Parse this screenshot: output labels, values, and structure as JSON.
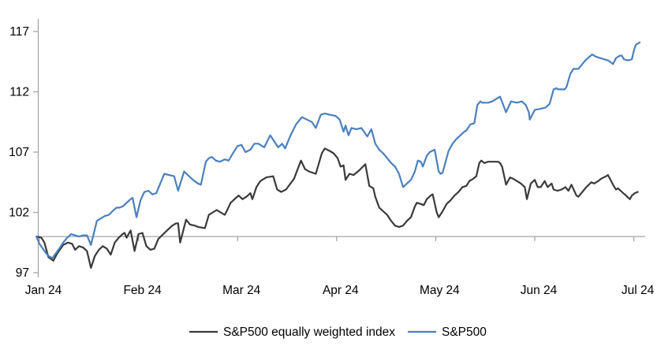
{
  "chart_data": {
    "type": "line",
    "title": "",
    "xlabel": "",
    "ylabel": "",
    "x_axis": {
      "tick_labels": [
        "Jan 24",
        "Feb 24",
        "Mar 24",
        "Apr 24",
        "May 24",
        "Jun 24",
        "Jul 24"
      ],
      "baseline_value": 100,
      "grid": false
    },
    "y_axis": {
      "tick_values": [
        97,
        102,
        107,
        112,
        117
      ],
      "range": [
        97,
        118.1
      ],
      "grid": false
    },
    "legend_position": "bottom-center",
    "axis_color": "#a6a6a6",
    "series": [
      {
        "name": "S&P500 equally weighted index",
        "color": "#3a3a3a",
        "points": [
          [
            -0.03,
            100.0
          ],
          [
            0.02,
            99.9
          ],
          [
            0.05,
            99.5
          ],
          [
            0.09,
            98.3
          ],
          [
            0.14,
            98.0
          ],
          [
            0.18,
            98.6
          ],
          [
            0.24,
            99.3
          ],
          [
            0.29,
            99.5
          ],
          [
            0.33,
            99.4
          ],
          [
            0.36,
            98.9
          ],
          [
            0.4,
            99.2
          ],
          [
            0.44,
            99.1
          ],
          [
            0.48,
            98.8
          ],
          [
            0.52,
            97.4
          ],
          [
            0.56,
            98.4
          ],
          [
            0.6,
            98.9
          ],
          [
            0.64,
            99.2
          ],
          [
            0.68,
            99.0
          ],
          [
            0.72,
            98.5
          ],
          [
            0.76,
            99.5
          ],
          [
            0.8,
            99.9
          ],
          [
            0.84,
            100.2
          ],
          [
            0.86,
            100.3
          ],
          [
            0.88,
            99.9
          ],
          [
            0.92,
            100.5
          ],
          [
            0.96,
            98.8
          ],
          [
            1.0,
            100.2
          ],
          [
            1.04,
            100.3
          ],
          [
            1.08,
            99.2
          ],
          [
            1.12,
            98.9
          ],
          [
            1.16,
            99.0
          ],
          [
            1.2,
            99.8
          ],
          [
            1.25,
            100.2
          ],
          [
            1.3,
            100.6
          ],
          [
            1.34,
            100.9
          ],
          [
            1.38,
            101.1
          ],
          [
            1.4,
            101.1
          ],
          [
            1.42,
            99.5
          ],
          [
            1.48,
            101.4
          ],
          [
            1.52,
            101.0
          ],
          [
            1.57,
            100.9
          ],
          [
            1.6,
            100.8
          ],
          [
            1.67,
            100.7
          ],
          [
            1.71,
            101.8
          ],
          [
            1.75,
            102.0
          ],
          [
            1.79,
            102.2
          ],
          [
            1.83,
            102.0
          ],
          [
            1.87,
            101.8
          ],
          [
            1.89,
            102.1
          ],
          [
            1.93,
            102.8
          ],
          [
            1.97,
            103.1
          ],
          [
            2.01,
            103.4
          ],
          [
            2.05,
            103.1
          ],
          [
            2.09,
            103.3
          ],
          [
            2.13,
            103.6
          ],
          [
            2.15,
            103.1
          ],
          [
            2.19,
            104.1
          ],
          [
            2.23,
            104.6
          ],
          [
            2.29,
            104.9
          ],
          [
            2.36,
            105.0
          ],
          [
            2.4,
            103.9
          ],
          [
            2.44,
            103.7
          ],
          [
            2.49,
            103.9
          ],
          [
            2.57,
            104.8
          ],
          [
            2.64,
            106.3
          ],
          [
            2.68,
            105.6
          ],
          [
            2.72,
            105.4
          ],
          [
            2.79,
            105.2
          ],
          [
            2.85,
            106.9
          ],
          [
            2.88,
            107.3
          ],
          [
            2.93,
            107.1
          ],
          [
            2.97,
            106.9
          ],
          [
            3.01,
            106.5
          ],
          [
            3.04,
            105.8
          ],
          [
            3.07,
            105.9
          ],
          [
            3.09,
            104.7
          ],
          [
            3.13,
            105.2
          ],
          [
            3.17,
            105.1
          ],
          [
            3.23,
            105.5
          ],
          [
            3.29,
            106.0
          ],
          [
            3.33,
            104.2
          ],
          [
            3.37,
            104.0
          ],
          [
            3.39,
            103.3
          ],
          [
            3.43,
            102.4
          ],
          [
            3.47,
            102.1
          ],
          [
            3.51,
            101.8
          ],
          [
            3.55,
            101.3
          ],
          [
            3.59,
            100.9
          ],
          [
            3.63,
            100.8
          ],
          [
            3.67,
            100.9
          ],
          [
            3.71,
            101.3
          ],
          [
            3.75,
            101.6
          ],
          [
            3.79,
            102.5
          ],
          [
            3.81,
            102.8
          ],
          [
            3.85,
            102.7
          ],
          [
            3.88,
            102.6
          ],
          [
            3.91,
            103.1
          ],
          [
            3.95,
            103.4
          ],
          [
            3.97,
            103.5
          ],
          [
            4.01,
            102.0
          ],
          [
            4.03,
            101.6
          ],
          [
            4.07,
            102.1
          ],
          [
            4.11,
            102.7
          ],
          [
            4.15,
            103.0
          ],
          [
            4.19,
            103.4
          ],
          [
            4.23,
            103.7
          ],
          [
            4.27,
            104.1
          ],
          [
            4.31,
            104.2
          ],
          [
            4.34,
            104.6
          ],
          [
            4.38,
            104.8
          ],
          [
            4.41,
            105.0
          ],
          [
            4.44,
            106.1
          ],
          [
            4.46,
            106.3
          ],
          [
            4.49,
            106.1
          ],
          [
            4.53,
            106.2
          ],
          [
            4.59,
            106.2
          ],
          [
            4.63,
            106.2
          ],
          [
            4.65,
            106.1
          ],
          [
            4.67,
            105.8
          ],
          [
            4.71,
            104.3
          ],
          [
            4.75,
            104.9
          ],
          [
            4.78,
            104.8
          ],
          [
            4.82,
            104.6
          ],
          [
            4.86,
            104.4
          ],
          [
            4.9,
            104.1
          ],
          [
            4.92,
            103.1
          ],
          [
            4.96,
            104.4
          ],
          [
            5.0,
            104.7
          ],
          [
            5.03,
            104.1
          ],
          [
            5.06,
            104.1
          ],
          [
            5.1,
            104.6
          ],
          [
            5.13,
            104.1
          ],
          [
            5.17,
            104.4
          ],
          [
            5.19,
            103.9
          ],
          [
            5.23,
            103.8
          ],
          [
            5.27,
            103.9
          ],
          [
            5.31,
            104.1
          ],
          [
            5.34,
            103.8
          ],
          [
            5.37,
            104.3
          ],
          [
            5.42,
            103.4
          ],
          [
            5.44,
            103.3
          ],
          [
            5.48,
            103.7
          ],
          [
            5.52,
            104.1
          ],
          [
            5.57,
            104.5
          ],
          [
            5.6,
            104.4
          ],
          [
            5.64,
            104.6
          ],
          [
            5.67,
            104.8
          ],
          [
            5.72,
            105.0
          ],
          [
            5.74,
            105.1
          ],
          [
            5.79,
            104.3
          ],
          [
            5.82,
            103.9
          ],
          [
            5.84,
            104.0
          ],
          [
            5.88,
            103.7
          ],
          [
            5.92,
            103.4
          ],
          [
            5.96,
            103.1
          ],
          [
            5.98,
            103.4
          ],
          [
            6.01,
            103.6
          ],
          [
            6.04,
            103.7
          ]
        ]
      },
      {
        "name": "S&P500",
        "color": "#4a80bf",
        "points": [
          [
            -0.03,
            100.0
          ],
          [
            0.0,
            99.4
          ],
          [
            0.06,
            98.7
          ],
          [
            0.09,
            98.4
          ],
          [
            0.13,
            98.2
          ],
          [
            0.2,
            99.0
          ],
          [
            0.24,
            99.5
          ],
          [
            0.28,
            99.9
          ],
          [
            0.32,
            100.2
          ],
          [
            0.36,
            100.1
          ],
          [
            0.4,
            100.0
          ],
          [
            0.44,
            100.1
          ],
          [
            0.48,
            100.1
          ],
          [
            0.52,
            99.3
          ],
          [
            0.55,
            100.3
          ],
          [
            0.58,
            101.3
          ],
          [
            0.62,
            101.5
          ],
          [
            0.66,
            101.7
          ],
          [
            0.7,
            101.8
          ],
          [
            0.75,
            102.2
          ],
          [
            0.78,
            102.4
          ],
          [
            0.81,
            102.4
          ],
          [
            0.84,
            102.5
          ],
          [
            0.88,
            102.8
          ],
          [
            0.92,
            103.1
          ],
          [
            0.94,
            103.2
          ],
          [
            0.98,
            101.6
          ],
          [
            1.02,
            103.0
          ],
          [
            1.06,
            103.7
          ],
          [
            1.1,
            103.8
          ],
          [
            1.14,
            103.5
          ],
          [
            1.18,
            103.6
          ],
          [
            1.22,
            104.4
          ],
          [
            1.26,
            105.2
          ],
          [
            1.31,
            105.1
          ],
          [
            1.36,
            105.0
          ],
          [
            1.4,
            103.8
          ],
          [
            1.46,
            105.4
          ],
          [
            1.51,
            105.0
          ],
          [
            1.55,
            104.7
          ],
          [
            1.6,
            104.4
          ],
          [
            1.63,
            104.3
          ],
          [
            1.68,
            106.2
          ],
          [
            1.71,
            106.5
          ],
          [
            1.74,
            106.6
          ],
          [
            1.78,
            106.3
          ],
          [
            1.82,
            106.2
          ],
          [
            1.87,
            106.4
          ],
          [
            1.91,
            106.3
          ],
          [
            1.96,
            107.0
          ],
          [
            2.0,
            107.5
          ],
          [
            2.04,
            107.6
          ],
          [
            2.08,
            107.0
          ],
          [
            2.13,
            107.2
          ],
          [
            2.17,
            107.7
          ],
          [
            2.21,
            107.7
          ],
          [
            2.27,
            107.4
          ],
          [
            2.33,
            108.4
          ],
          [
            2.41,
            107.4
          ],
          [
            2.45,
            107.7
          ],
          [
            2.48,
            107.3
          ],
          [
            2.53,
            108.3
          ],
          [
            2.59,
            109.3
          ],
          [
            2.65,
            109.9
          ],
          [
            2.7,
            109.7
          ],
          [
            2.75,
            109.5
          ],
          [
            2.79,
            109.0
          ],
          [
            2.84,
            110.1
          ],
          [
            2.88,
            110.2
          ],
          [
            2.93,
            110.1
          ],
          [
            2.99,
            110.0
          ],
          [
            3.03,
            109.7
          ],
          [
            3.07,
            108.7
          ],
          [
            3.09,
            109.2
          ],
          [
            3.12,
            108.4
          ],
          [
            3.15,
            109.0
          ],
          [
            3.2,
            108.9
          ],
          [
            3.25,
            109.0
          ],
          [
            3.31,
            108.3
          ],
          [
            3.35,
            108.9
          ],
          [
            3.39,
            107.7
          ],
          [
            3.43,
            107.2
          ],
          [
            3.47,
            106.9
          ],
          [
            3.51,
            106.5
          ],
          [
            3.55,
            106.1
          ],
          [
            3.59,
            105.8
          ],
          [
            3.63,
            105.2
          ],
          [
            3.67,
            104.1
          ],
          [
            3.71,
            104.4
          ],
          [
            3.75,
            104.7
          ],
          [
            3.79,
            105.4
          ],
          [
            3.82,
            106.3
          ],
          [
            3.85,
            106.2
          ],
          [
            3.87,
            105.8
          ],
          [
            3.91,
            106.7
          ],
          [
            3.94,
            107.0
          ],
          [
            3.99,
            107.2
          ],
          [
            4.03,
            105.4
          ],
          [
            4.05,
            105.2
          ],
          [
            4.07,
            105.3
          ],
          [
            4.13,
            107.1
          ],
          [
            4.17,
            107.7
          ],
          [
            4.21,
            108.1
          ],
          [
            4.25,
            108.4
          ],
          [
            4.29,
            108.7
          ],
          [
            4.31,
            108.8
          ],
          [
            4.35,
            109.3
          ],
          [
            4.39,
            109.4
          ],
          [
            4.42,
            110.9
          ],
          [
            4.45,
            111.2
          ],
          [
            4.47,
            111.1
          ],
          [
            4.53,
            111.1
          ],
          [
            4.57,
            111.2
          ],
          [
            4.63,
            111.5
          ],
          [
            4.65,
            111.6
          ],
          [
            4.71,
            110.3
          ],
          [
            4.76,
            111.2
          ],
          [
            4.82,
            111.1
          ],
          [
            4.87,
            111.2
          ],
          [
            4.91,
            110.9
          ],
          [
            4.94,
            110.3
          ],
          [
            4.95,
            109.7
          ],
          [
            5.0,
            110.5
          ],
          [
            5.06,
            110.6
          ],
          [
            5.11,
            110.7
          ],
          [
            5.15,
            111.0
          ],
          [
            5.19,
            112.2
          ],
          [
            5.22,
            112.3
          ],
          [
            5.24,
            112.2
          ],
          [
            5.3,
            112.2
          ],
          [
            5.32,
            112.4
          ],
          [
            5.36,
            113.5
          ],
          [
            5.39,
            113.9
          ],
          [
            5.44,
            113.9
          ],
          [
            5.51,
            114.6
          ],
          [
            5.55,
            114.9
          ],
          [
            5.58,
            115.1
          ],
          [
            5.62,
            114.9
          ],
          [
            5.66,
            114.8
          ],
          [
            5.7,
            114.7
          ],
          [
            5.74,
            114.6
          ],
          [
            5.76,
            114.5
          ],
          [
            5.79,
            114.3
          ],
          [
            5.82,
            114.8
          ],
          [
            5.86,
            115.0
          ],
          [
            5.88,
            115.0
          ],
          [
            5.9,
            114.7
          ],
          [
            5.94,
            114.6
          ],
          [
            5.98,
            114.7
          ],
          [
            6.0,
            115.4
          ],
          [
            6.02,
            115.9
          ],
          [
            6.06,
            116.1
          ]
        ]
      }
    ]
  }
}
